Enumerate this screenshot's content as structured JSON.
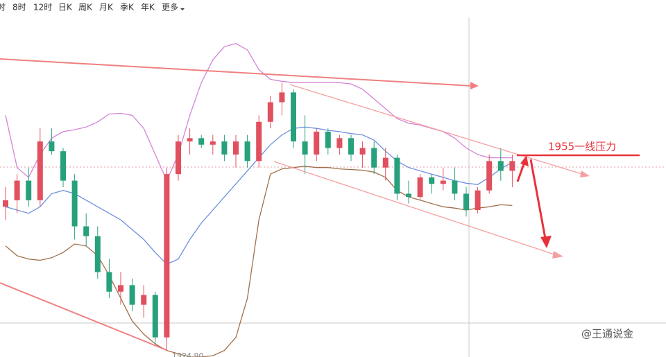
{
  "toolbar": [
    "时",
    "8时",
    "12时",
    "日K",
    "周K",
    "月K",
    "季K",
    "年K",
    "更多"
  ],
  "watermark": "@王通说金",
  "chart_data": {
    "type": "candlestick",
    "annotations": [
      "1955一线压力",
      "1924.90"
    ],
    "ylim": [
      1924,
      1976
    ],
    "up_color": "#e0505e",
    "down_color": "#27a07c",
    "open": [
      1947,
      1948,
      1951,
      1948,
      1957,
      1955.5,
      1951,
      1944,
      1942.5,
      1937,
      1934,
      1935,
      1932,
      1933.5,
      1927,
      1952,
      1957,
      1957.5,
      1956.5,
      1957,
      1955,
      1957,
      1954,
      1960,
      1963,
      1964.5,
      1957,
      1955,
      1958.5,
      1956,
      1957.5,
      1955,
      1956,
      1953,
      1954.5,
      1949,
      1948.5,
      1951.5,
      1950.5,
      1951,
      1949,
      1946.5,
      1949.5,
      1954,
      1952.5
    ],
    "high": [
      1950,
      1952,
      1953,
      1959,
      1959,
      1956,
      1952,
      1946,
      1944,
      1939,
      1937,
      1936,
      1935,
      1934,
      1953,
      1958,
      1959,
      1958,
      1958,
      1958,
      1958,
      1958,
      1961,
      1964,
      1966,
      1965,
      1961,
      1959,
      1959,
      1958,
      1958,
      1957,
      1957,
      1956,
      1955,
      1951,
      1952,
      1952,
      1953,
      1953,
      1950,
      1950,
      1955,
      1956,
      1955
    ],
    "low": [
      1945,
      1946,
      1947,
      1947,
      1955,
      1950,
      1942,
      1941,
      1936,
      1933,
      1932,
      1931,
      1930,
      1926,
      1924.9,
      1951,
      1955,
      1956,
      1955,
      1954,
      1953,
      1953,
      1953,
      1959,
      1961,
      1956,
      1952,
      1954,
      1955,
      1955,
      1954,
      1953,
      1952,
      1951,
      1948,
      1947.5,
      1948,
      1949,
      1949.5,
      1948,
      1945.5,
      1946,
      1949,
      1951,
      1950
    ],
    "close": [
      1948,
      1951,
      1948,
      1957,
      1955.5,
      1951,
      1944,
      1942.5,
      1937,
      1934,
      1935,
      1932,
      1933.5,
      1927,
      1952,
      1957,
      1957.5,
      1956.5,
      1957,
      1955,
      1957,
      1954,
      1960,
      1963,
      1964.5,
      1957,
      1955,
      1958.5,
      1956,
      1957.5,
      1955,
      1956,
      1953,
      1954.5,
      1949,
      1948.5,
      1951.5,
      1950.5,
      1951,
      1949,
      1946.5,
      1949.5,
      1954,
      1952.5,
      1954
    ],
    "bands": [
      {
        "color": "#d483d8",
        "values": [
          1961,
          1953,
          1951.5,
          1955,
          1957.5,
          1958.5,
          1958.8,
          1959.2,
          1960,
          1961.2,
          1961.3,
          1961,
          1959,
          1955,
          1951,
          1955,
          1961,
          1966,
          1969.5,
          1971.5,
          1972,
          1971,
          1968,
          1966.5,
          1966.2,
          1966,
          1966,
          1966,
          1966,
          1966,
          1965.8,
          1965,
          1963.5,
          1962,
          1960.5,
          1959.8,
          1959.5,
          1959,
          1958.5,
          1957.5,
          1956,
          1955,
          1954.5,
          1954.5,
          1954.5
        ]
      },
      {
        "color": "#6d8fe0",
        "values": [
          1947,
          1946.5,
          1946,
          1947,
          1949,
          1949.5,
          1949,
          1948,
          1947,
          1946,
          1945,
          1943.5,
          1942,
          1940,
          1938.2,
          1939,
          1942,
          1944.5,
          1946.5,
          1948.5,
          1950.5,
          1952.5,
          1954.5,
          1956.5,
          1958,
          1959,
          1959.2,
          1959,
          1958.7,
          1958.5,
          1958.2,
          1958,
          1957.2,
          1955.5,
          1954,
          1953,
          1952.5,
          1952,
          1951.5,
          1951,
          1950.6,
          1950.4,
          1951.5,
          1952.8,
          1953.8
        ]
      },
      {
        "color": "#a0704a",
        "values": [
          1941,
          1939.5,
          1939,
          1938.8,
          1939.2,
          1940,
          1941.3,
          1941,
          1939.5,
          1936.5,
          1933,
          1929.5,
          1927.5,
          1926,
          1925,
          1924.5,
          1924,
          1924,
          1924.2,
          1925,
          1927,
          1933,
          1945,
          1952,
          1952.8,
          1953,
          1953.2,
          1953,
          1953,
          1952.8,
          1952.7,
          1952.6,
          1952.3,
          1951.5,
          1949.5,
          1948.5,
          1948,
          1947.5,
          1947,
          1946.8,
          1946.5,
          1946.8,
          1947,
          1947.3,
          1947.2
        ]
      }
    ]
  }
}
